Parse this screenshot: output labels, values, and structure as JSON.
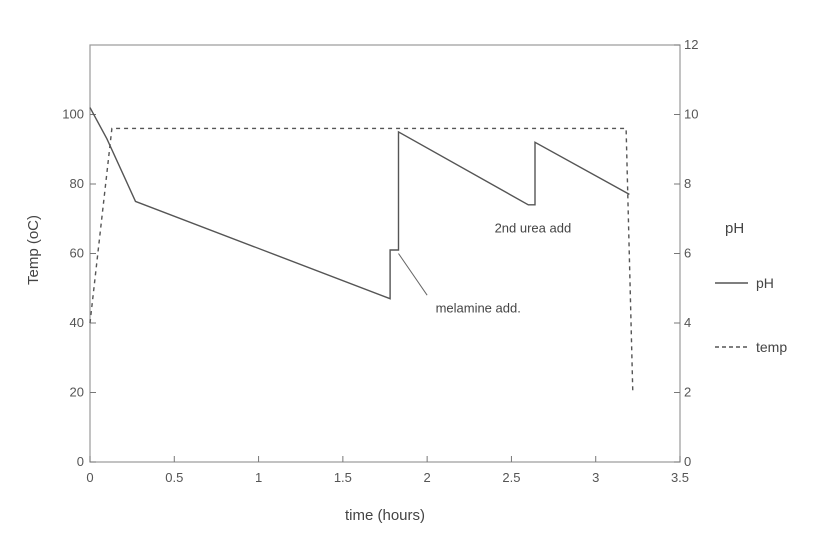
{
  "chart_data": {
    "type": "line",
    "xlabel": "time (hours)",
    "ylabel_left": "Temp (oC)",
    "ylabel_right": "pH",
    "xlim": [
      0,
      3.5
    ],
    "ylim_left": [
      0,
      120
    ],
    "ylim_right": [
      0,
      12
    ],
    "x_ticks": [
      "0",
      "0.5",
      "1",
      "1.5",
      "2",
      "2.5",
      "3",
      "3.5"
    ],
    "y_left_ticks": [
      "0",
      "20",
      "40",
      "60",
      "80",
      "100"
    ],
    "y_right_ticks": [
      "0",
      "2",
      "4",
      "6",
      "8",
      "10",
      "12"
    ],
    "grid": false,
    "legend_position": "right",
    "series": [
      {
        "name": "pH",
        "axis": "right",
        "style": "solid",
        "color": "#555555",
        "points": [
          [
            0,
            10.2
          ],
          [
            0.1,
            9.3
          ],
          [
            0.27,
            7.5
          ],
          [
            1.78,
            4.7
          ],
          [
            1.78,
            6.1
          ],
          [
            1.83,
            6.1
          ],
          [
            1.83,
            9.5
          ],
          [
            2.6,
            7.4
          ],
          [
            2.6,
            7.4
          ],
          [
            2.64,
            7.4
          ],
          [
            2.64,
            9.2
          ],
          [
            3.2,
            7.7
          ]
        ]
      },
      {
        "name": "temp",
        "axis": "left",
        "style": "dashed",
        "color": "#555555",
        "points": [
          [
            0,
            40
          ],
          [
            0.13,
            96
          ],
          [
            3.18,
            96
          ],
          [
            3.22,
            20
          ]
        ]
      }
    ],
    "annotations": [
      {
        "text": "melamine add.",
        "x": 2.05,
        "y_right": 4.3
      },
      {
        "text": "2nd urea add",
        "x": 2.4,
        "y_right": 6.6
      }
    ]
  }
}
